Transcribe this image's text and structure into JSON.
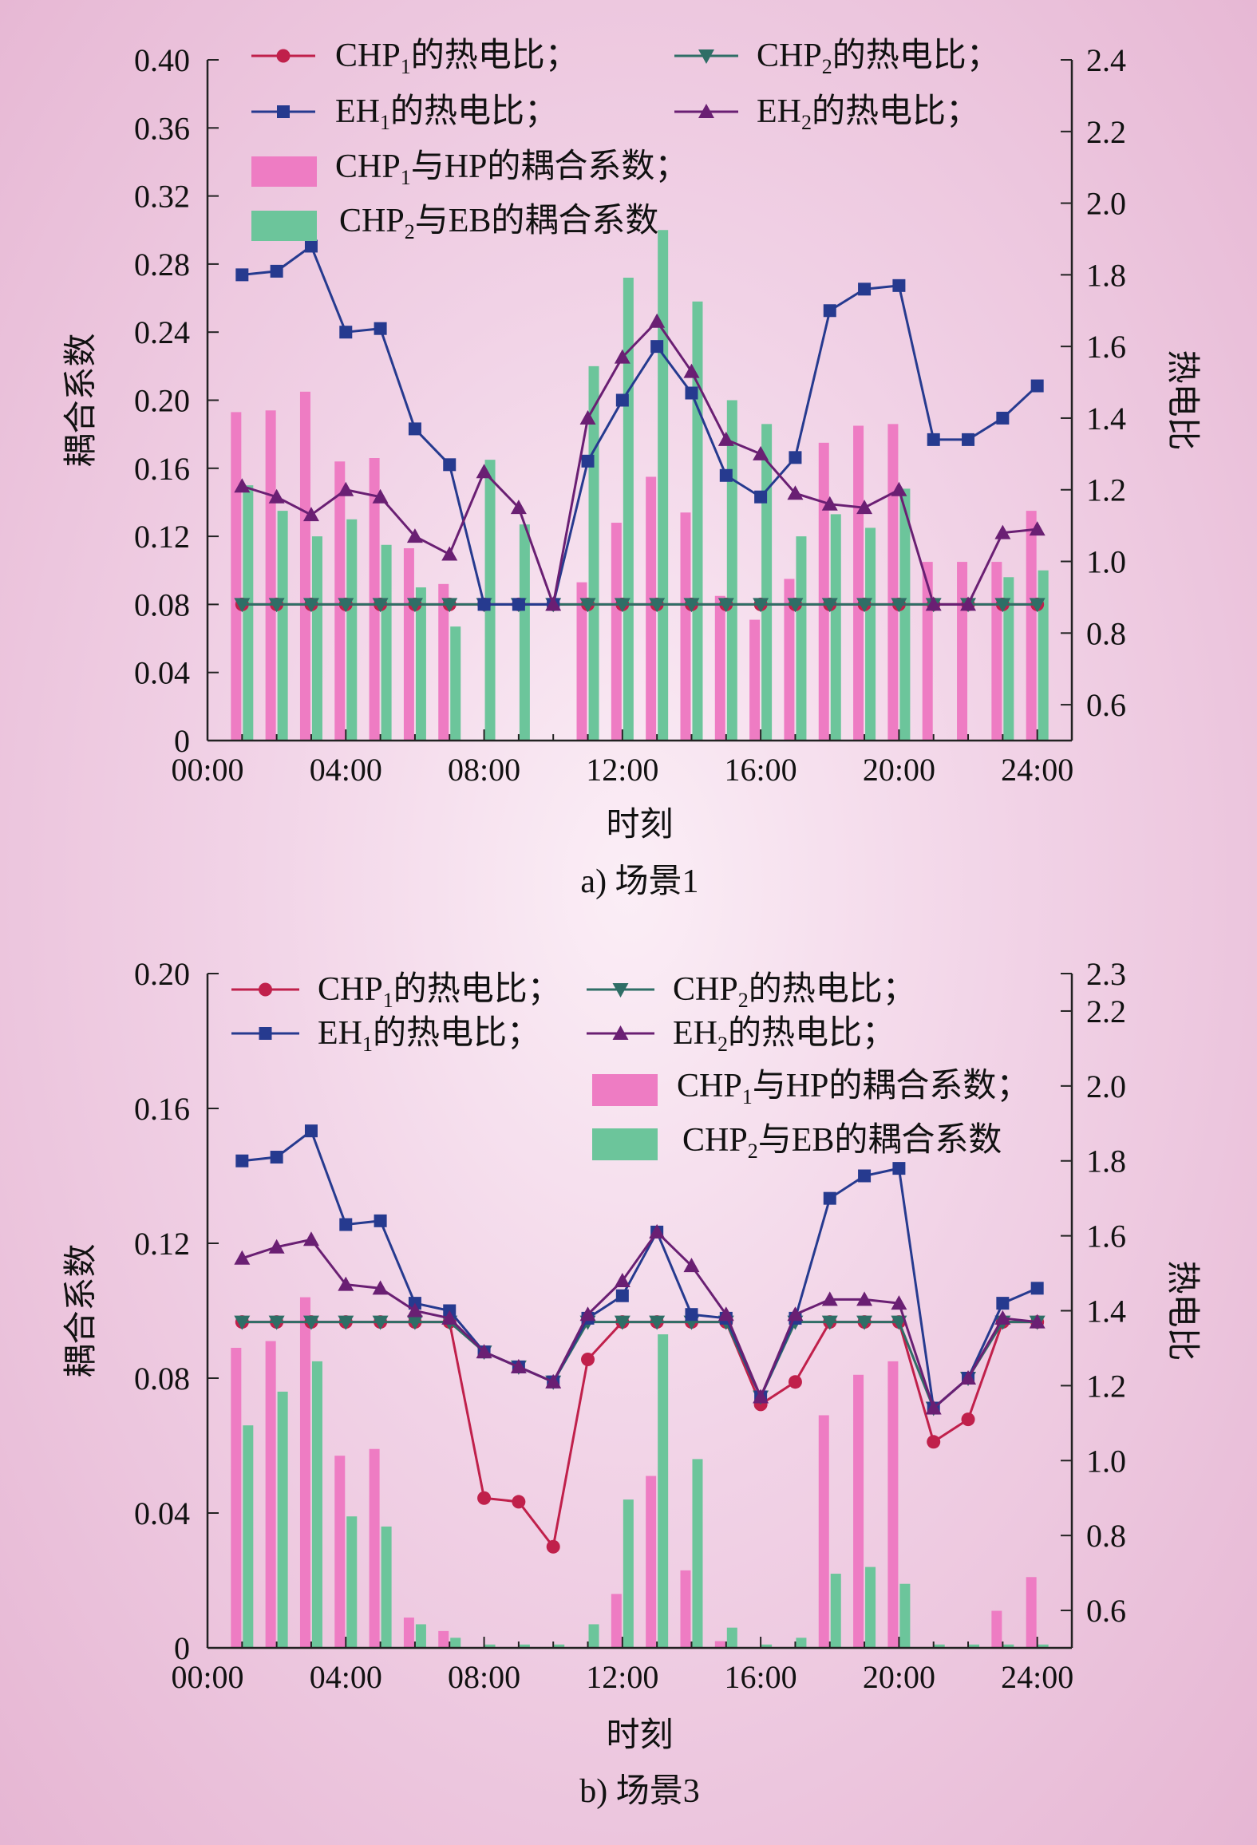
{
  "colors": {
    "chp1_line": "#c0204b",
    "chp2_line": "#2f6e66",
    "eh1_line": "#263a8f",
    "eh2_line": "#6a1f73",
    "bar_chp1_hp": "#ee7cc3",
    "bar_chp2_eb": "#6cc59b"
  },
  "legend": {
    "chp1": {
      "pre": "CHP",
      "sub": "1",
      "post": "的热电比；"
    },
    "chp2": {
      "pre": "CHP",
      "sub": "2",
      "post": "的热电比；"
    },
    "eh1": {
      "pre": "EH",
      "sub": "1",
      "post": "的热电比；"
    },
    "eh2": {
      "pre": "EH",
      "sub": "2",
      "post": "的热电比；"
    },
    "bar1": {
      "pre": "CHP",
      "sub": "1",
      "post": "与HP的耦合系数；"
    },
    "bar2": {
      "pre": "CHP",
      "sub": "2",
      "post": "与EB的耦合系数"
    }
  },
  "chart_data": [
    {
      "type": "bar",
      "caption": "a) 场景1",
      "xlabel": "时刻",
      "ylabel": "耦合系数",
      "y2label": "热电比",
      "x_ticks": [
        "00:00",
        "04:00",
        "08:00",
        "12:00",
        "16:00",
        "20:00",
        "24:00"
      ],
      "y_ticks": [
        "0",
        "0.04",
        "0.08",
        "0.12",
        "0.16",
        "0.20",
        "0.24",
        "0.28",
        "0.32",
        "0.36",
        "0.40"
      ],
      "y2_ticks": [
        "0.6",
        "0.8",
        "1.0",
        "1.2",
        "1.4",
        "1.6",
        "1.8",
        "2.0",
        "2.2",
        "2.4"
      ],
      "ylim": [
        0,
        0.4
      ],
      "y2lim": [
        0.5,
        2.4
      ],
      "x_hours": [
        1,
        2,
        3,
        4,
        5,
        6,
        7,
        8,
        9,
        10,
        11,
        12,
        13,
        14,
        15,
        16,
        17,
        18,
        19,
        20,
        21,
        22,
        23,
        24
      ],
      "bars": [
        {
          "name": "CHP1与HP的耦合系数",
          "values": [
            0.193,
            0.194,
            0.205,
            0.164,
            0.166,
            0.113,
            0.092,
            0,
            0,
            0,
            0.093,
            0.128,
            0.155,
            0.134,
            0.085,
            0.071,
            0.095,
            0.175,
            0.185,
            0.186,
            0.105,
            0.105,
            0.105,
            0.135
          ]
        },
        {
          "name": "CHP2与EB的耦合系数",
          "values": [
            0.15,
            0.135,
            0.12,
            0.13,
            0.115,
            0.09,
            0.067,
            0.165,
            0.127,
            0,
            0.22,
            0.272,
            0.3,
            0.258,
            0.2,
            0.186,
            0.12,
            0.133,
            0.125,
            0.148,
            0,
            0,
            0.096,
            0.1
          ]
        }
      ],
      "series": [
        {
          "name": "CHP1的热电比",
          "values": [
            0.88,
            0.88,
            0.88,
            0.88,
            0.88,
            0.88,
            0.88,
            0.88,
            0.88,
            0.88,
            0.88,
            0.88,
            0.88,
            0.88,
            0.88,
            0.88,
            0.88,
            0.88,
            0.88,
            0.88,
            0.88,
            0.88,
            0.88,
            0.88
          ]
        },
        {
          "name": "CHP2的热电比",
          "values": [
            0.88,
            0.88,
            0.88,
            0.88,
            0.88,
            0.88,
            0.88,
            0.88,
            0.88,
            0.88,
            0.88,
            0.88,
            0.88,
            0.88,
            0.88,
            0.88,
            0.88,
            0.88,
            0.88,
            0.88,
            0.88,
            0.88,
            0.88,
            0.88
          ]
        },
        {
          "name": "EH1的热电比",
          "values": [
            1.8,
            1.81,
            1.88,
            1.64,
            1.65,
            1.37,
            1.27,
            0.88,
            0.88,
            0.88,
            1.28,
            1.45,
            1.6,
            1.47,
            1.24,
            1.18,
            1.29,
            1.7,
            1.76,
            1.77,
            1.34,
            1.34,
            1.4,
            1.49
          ]
        },
        {
          "name": "EH2的热电比",
          "values": [
            1.21,
            1.18,
            1.13,
            1.2,
            1.18,
            1.07,
            1.02,
            1.25,
            1.15,
            0.88,
            1.4,
            1.57,
            1.67,
            1.53,
            1.34,
            1.3,
            1.19,
            1.16,
            1.15,
            1.2,
            0.88,
            0.88,
            1.08,
            1.09
          ]
        }
      ]
    },
    {
      "type": "bar",
      "caption": "b) 场景3",
      "xlabel": "时刻",
      "ylabel": "耦合系数",
      "y2label": "热电比",
      "x_ticks": [
        "00:00",
        "04:00",
        "08:00",
        "12:00",
        "16:00",
        "20:00",
        "24:00"
      ],
      "y_ticks": [
        "0",
        "0.04",
        "0.08",
        "0.12",
        "0.16",
        "0.20"
      ],
      "y2_ticks": [
        "0.6",
        "0.8",
        "1.0",
        "1.2",
        "1.4",
        "1.6",
        "1.8",
        "2.0",
        "2.2",
        "2.3"
      ],
      "ylim": [
        0,
        0.2
      ],
      "y2lim": [
        0.5,
        2.3
      ],
      "x_hours": [
        1,
        2,
        3,
        4,
        5,
        6,
        7,
        8,
        9,
        10,
        11,
        12,
        13,
        14,
        15,
        16,
        17,
        18,
        19,
        20,
        21,
        22,
        23,
        24
      ],
      "bars": [
        {
          "name": "CHP1与HP的耦合系数",
          "values": [
            0.089,
            0.091,
            0.104,
            0.057,
            0.059,
            0.009,
            0.005,
            0,
            0,
            0,
            0,
            0.016,
            0.051,
            0.023,
            0.002,
            0,
            0,
            0.069,
            0.081,
            0.085,
            0,
            0,
            0.011,
            0.021
          ]
        },
        {
          "name": "CHP2与EB的耦合系数",
          "values": [
            0.066,
            0.076,
            0.085,
            0.039,
            0.036,
            0.007,
            0.003,
            0.001,
            0.001,
            0.001,
            0.007,
            0.044,
            0.093,
            0.056,
            0.006,
            0.001,
            0.003,
            0.022,
            0.024,
            0.019,
            0.001,
            0.001,
            0.001,
            0.001
          ]
        }
      ],
      "series": [
        {
          "name": "CHP1的热电比",
          "values": [
            1.37,
            1.37,
            1.37,
            1.37,
            1.37,
            1.37,
            1.37,
            0.9,
            0.89,
            0.77,
            1.27,
            1.37,
            1.37,
            1.37,
            1.37,
            1.15,
            1.21,
            1.37,
            1.37,
            1.37,
            1.05,
            1.11,
            1.37,
            1.37
          ]
        },
        {
          "name": "CHP2的热电比",
          "values": [
            1.37,
            1.37,
            1.37,
            1.37,
            1.37,
            1.37,
            1.37,
            1.29,
            1.25,
            1.21,
            1.37,
            1.37,
            1.37,
            1.37,
            1.37,
            1.17,
            1.37,
            1.37,
            1.37,
            1.37,
            1.14,
            1.22,
            1.37,
            1.37
          ]
        },
        {
          "name": "EH1的热电比",
          "values": [
            1.8,
            1.81,
            1.88,
            1.63,
            1.64,
            1.42,
            1.4,
            1.29,
            1.25,
            1.21,
            1.38,
            1.44,
            1.61,
            1.39,
            1.38,
            1.17,
            1.38,
            1.7,
            1.76,
            1.78,
            1.14,
            1.22,
            1.42,
            1.46
          ]
        },
        {
          "name": "EH2的热电比",
          "values": [
            1.54,
            1.57,
            1.59,
            1.47,
            1.46,
            1.4,
            1.38,
            1.29,
            1.25,
            1.21,
            1.39,
            1.48,
            1.61,
            1.52,
            1.39,
            1.17,
            1.39,
            1.43,
            1.43,
            1.42,
            1.14,
            1.22,
            1.38,
            1.37
          ]
        }
      ]
    }
  ]
}
